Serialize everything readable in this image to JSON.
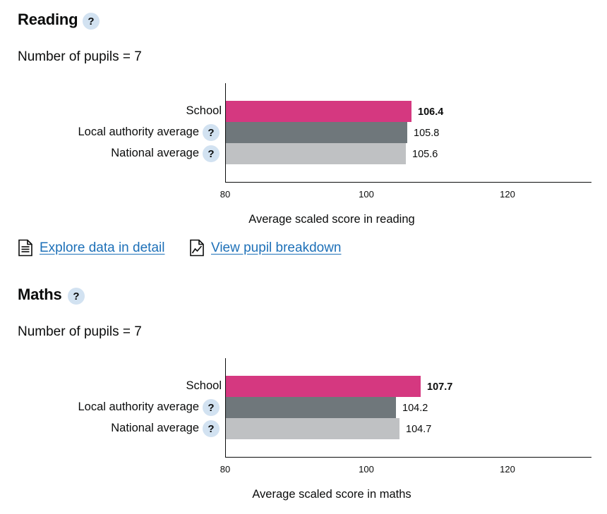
{
  "reading": {
    "title": "Reading",
    "help": "?",
    "pupils": "Number of pupils = 7"
  },
  "maths": {
    "title": "Maths",
    "help": "?",
    "pupils": "Number of pupils = 7"
  },
  "links": {
    "explore": "Explore data in detail",
    "breakdown": "View pupil breakdown",
    "explore_icon": "document-icon",
    "breakdown_icon": "line-chart-icon"
  },
  "colors": {
    "school": "#d53880",
    "local_authority": "#6f777b",
    "national": "#bfc1c3",
    "link": "#1d70b8",
    "help_bg": "#d2e2f1"
  },
  "chart_data": [
    {
      "type": "bar",
      "orientation": "horizontal",
      "categories": [
        "School",
        "Local authority average",
        "National average"
      ],
      "values": [
        106.4,
        105.8,
        105.6
      ],
      "value_labels": [
        "106.4",
        "105.8",
        "105.6"
      ],
      "help_on": [
        false,
        true,
        true
      ],
      "xlabel": "Average scaled score in reading",
      "xlim": [
        80,
        140
      ],
      "xticks": [
        80,
        100,
        120
      ],
      "grid": false
    },
    {
      "type": "bar",
      "orientation": "horizontal",
      "categories": [
        "School",
        "Local authority average",
        "National average"
      ],
      "values": [
        107.7,
        104.2,
        104.7
      ],
      "value_labels": [
        "107.7",
        "104.2",
        "104.7"
      ],
      "help_on": [
        false,
        true,
        true
      ],
      "xlabel": "Average scaled score in maths",
      "xlim": [
        80,
        140
      ],
      "xticks": [
        80,
        100,
        120
      ],
      "grid": false
    }
  ]
}
